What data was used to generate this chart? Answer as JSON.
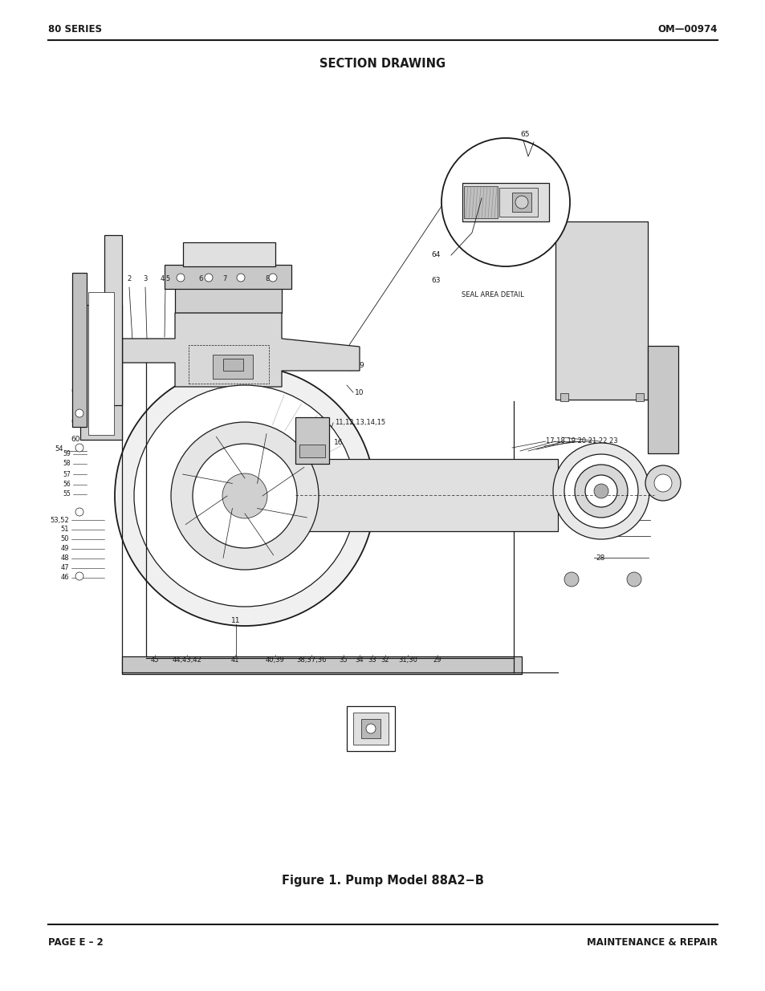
{
  "page_title_left": "80 SERIES",
  "page_title_right": "OM—00974",
  "section_title": "SECTION DRAWING",
  "figure_caption": "Figure 1. Pump Model 88A2−B",
  "footer_left": "PAGE E – 2",
  "footer_right": "MAINTENANCE & REPAIR",
  "bg_color": "#ffffff",
  "line_color": "#1a1a1a",
  "text_color": "#1a1a1a"
}
